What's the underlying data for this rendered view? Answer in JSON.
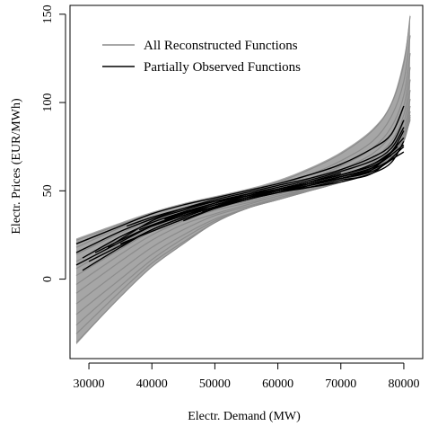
{
  "chart_data": {
    "type": "line",
    "xlabel": "Electr. Demand (MW)",
    "ylabel": "Electr. Prices (EUR/MWh)",
    "xlim": [
      27000,
      83000
    ],
    "ylim": [
      -45,
      155
    ],
    "x_ticks": [
      30000,
      40000,
      50000,
      60000,
      70000,
      80000
    ],
    "y_ticks": [
      0,
      50,
      100,
      150
    ],
    "legend_position": "top-left",
    "series": [
      {
        "name": "All Reconstructed Functions",
        "color": "#8c8c8c",
        "style": "gray-band",
        "lower_envelope": {
          "x": [
            28000,
            35000,
            40000,
            45000,
            50000,
            55000,
            60000,
            65000,
            70000,
            75000,
            78000,
            80000,
            81000
          ],
          "y": [
            -37,
            -10,
            7,
            20,
            32,
            40,
            45,
            50,
            56,
            63,
            70,
            80,
            90
          ]
        },
        "upper_envelope": {
          "x": [
            28000,
            35000,
            40000,
            45000,
            50000,
            55000,
            60000,
            65000,
            70000,
            75000,
            78000,
            80000,
            81000
          ],
          "y": [
            23,
            32,
            38,
            43,
            47,
            51,
            56,
            63,
            72,
            85,
            100,
            125,
            150
          ]
        },
        "curves": [
          {
            "x": [
              28000,
              35000,
              40000,
              45000,
              50000,
              55000,
              60000,
              65000,
              70000,
              75000,
              78000,
              80000,
              81000
            ],
            "y": [
              22,
              31,
              37,
              42,
              46,
              50,
              55,
              62,
              71,
              84,
              99,
              122,
              149
            ]
          },
          {
            "x": [
              28000,
              35000,
              40000,
              45000,
              50000,
              55000,
              60000,
              65000,
              70000,
              75000,
              78000,
              80000,
              81000
            ],
            "y": [
              18,
              29,
              35,
              40,
              44,
              48,
              53,
              59,
              67,
              78,
              92,
              112,
              138
            ]
          },
          {
            "x": [
              28000,
              35000,
              40000,
              45000,
              50000,
              55000,
              60000,
              65000,
              70000,
              75000,
              78000,
              80000,
              81000
            ],
            "y": [
              14,
              26,
              33,
              39,
              43,
              47,
              51,
              57,
              64,
              74,
              86,
              104,
              128
            ]
          },
          {
            "x": [
              28000,
              35000,
              40000,
              45000,
              50000,
              55000,
              60000,
              65000,
              70000,
              75000,
              78000,
              80000,
              81000
            ],
            "y": [
              10,
              23,
              31,
              37,
              42,
              46,
              50,
              55,
              62,
              71,
              82,
              98,
              120
            ]
          },
          {
            "x": [
              28000,
              35000,
              40000,
              45000,
              50000,
              55000,
              60000,
              65000,
              70000,
              75000,
              78000,
              80000,
              81000
            ],
            "y": [
              6,
              20,
              29,
              35,
              41,
              45,
              49,
              54,
              60,
              68,
              78,
              93,
              113
            ]
          },
          {
            "x": [
              28000,
              35000,
              40000,
              45000,
              50000,
              55000,
              60000,
              65000,
              70000,
              75000,
              78000,
              80000,
              81000
            ],
            "y": [
              2,
              17,
              27,
              34,
              40,
              44,
              48,
              53,
              58,
              66,
              75,
              89,
              107
            ]
          },
          {
            "x": [
              28000,
              35000,
              40000,
              45000,
              50000,
              55000,
              60000,
              65000,
              70000,
              75000,
              78000,
              80000,
              81000
            ],
            "y": [
              -3,
              14,
              25,
              33,
              39,
              43,
              47,
              52,
              57,
              64,
              72,
              85,
              102
            ]
          },
          {
            "x": [
              28000,
              35000,
              40000,
              45000,
              50000,
              55000,
              60000,
              65000,
              70000,
              75000,
              78000,
              80000,
              81000
            ],
            "y": [
              -8,
              10,
              22,
              31,
              37,
              42,
              47,
              51,
              56,
              62,
              70,
              82,
              98
            ]
          },
          {
            "x": [
              28000,
              35000,
              40000,
              45000,
              50000,
              55000,
              60000,
              65000,
              70000,
              75000,
              78000,
              80000,
              81000
            ],
            "y": [
              -14,
              5,
              18,
              28,
              36,
              41,
              46,
              51,
              56,
              61,
              69,
              80,
              95
            ]
          },
          {
            "x": [
              28000,
              35000,
              40000,
              45000,
              50000,
              55000,
              60000,
              65000,
              70000,
              75000,
              78000,
              80000,
              81000
            ],
            "y": [
              -20,
              0,
              14,
              25,
              34,
              40,
              46,
              50,
              55,
              61,
              68,
              79,
              93
            ]
          },
          {
            "x": [
              28000,
              35000,
              40000,
              45000,
              50000,
              55000,
              60000,
              65000,
              70000,
              75000,
              78000,
              80000,
              81000
            ],
            "y": [
              -26,
              -4,
              11,
              23,
              33,
              40,
              45,
              50,
              55,
              61,
              68,
              78,
              92
            ]
          },
          {
            "x": [
              28000,
              35000,
              40000,
              45000,
              50000,
              55000,
              60000,
              65000,
              70000,
              75000,
              78000,
              80000,
              81000
            ],
            "y": [
              -31,
              -7,
              9,
              21,
              32,
              40,
              45,
              50,
              55,
              62,
              69,
              79,
              91
            ]
          },
          {
            "x": [
              28000,
              35000,
              40000,
              45000,
              50000,
              55000,
              60000,
              65000,
              70000,
              75000,
              78000,
              80000,
              81000
            ],
            "y": [
              -36,
              -10,
              7,
              20,
              32,
              40,
              45,
              50,
              56,
              63,
              70,
              80,
              90
            ]
          }
        ]
      },
      {
        "name": "Partially Observed Functions",
        "color": "#000000",
        "style": "black-lines",
        "curves": [
          {
            "x": [
              28000,
              35000,
              40000,
              45000,
              50000,
              55000,
              60000,
              65000,
              70000,
              75000,
              78000,
              80000
            ],
            "y": [
              20,
              30,
              37,
              42,
              46,
              50,
              54,
              59,
              65,
              74,
              82,
              98
            ]
          },
          {
            "x": [
              28000,
              35000,
              40000,
              45000,
              50000,
              55000,
              60000,
              65000,
              70000,
              75000,
              78000,
              80000
            ],
            "y": [
              15,
              27,
              34,
              40,
              45,
              49,
              53,
              57,
              62,
              69,
              76,
              90
            ]
          },
          {
            "x": [
              29000,
              35000,
              40000,
              45000,
              50000,
              55000,
              60000,
              65000,
              70000,
              75000,
              78000,
              80000
            ],
            "y": [
              12,
              24,
              32,
              38,
              43,
              48,
              52,
              56,
              61,
              67,
              74,
              86
            ]
          },
          {
            "x": [
              28000,
              35000,
              40000,
              45000,
              50000,
              55000,
              60000,
              65000,
              70000,
              75000,
              78000
            ],
            "y": [
              8,
              21,
              30,
              37,
              42,
              47,
              51,
              55,
              59,
              65,
              72
            ]
          },
          {
            "x": [
              30000,
              35000,
              40000,
              45000,
              50000,
              55000,
              60000,
              65000,
              70000,
              75000,
              79000
            ],
            "y": [
              10,
              19,
              28,
              35,
              41,
              46,
              50,
              54,
              58,
              63,
              75
            ]
          },
          {
            "x": [
              31000,
              35000,
              40000,
              45000,
              50000,
              55000,
              60000,
              65000,
              70000,
              75000,
              80000
            ],
            "y": [
              15,
              22,
              30,
              36,
              42,
              46,
              50,
              53,
              57,
              62,
              80
            ]
          },
          {
            "x": [
              33000,
              40000,
              45000,
              50000,
              55000,
              60000,
              65000,
              70000,
              75000,
              78000,
              80000
            ],
            "y": [
              18,
              33,
              39,
              44,
              48,
              51,
              55,
              59,
              65,
              72,
              84
            ]
          },
          {
            "x": [
              35000,
              40000,
              45000,
              50000,
              55000,
              60000,
              65000,
              70000,
              75000,
              77000
            ],
            "y": [
              20,
              27,
              34,
              40,
              45,
              50,
              54,
              58,
              63,
              68
            ]
          },
          {
            "x": [
              29000,
              35000,
              40000,
              45000,
              50000,
              55000,
              60000,
              65000,
              70000
            ],
            "y": [
              5,
              18,
              28,
              35,
              41,
              46,
              50,
              55,
              60
            ]
          },
          {
            "x": [
              36000,
              40000,
              45000,
              50000,
              55000,
              60000,
              65000,
              70000,
              75000,
              78000,
              80000
            ],
            "y": [
              30,
              35,
              40,
              44,
              47,
              50,
              52,
              55,
              60,
              66,
              78
            ]
          },
          {
            "x": [
              38000,
              45000,
              50000,
              55000,
              60000,
              65000,
              70000,
              75000,
              79000
            ],
            "y": [
              28,
              37,
              42,
              46,
              50,
              54,
              57,
              61,
              70
            ]
          },
          {
            "x": [
              40000,
              45000,
              50000,
              55000,
              60000,
              65000,
              70000,
              75000,
              80000
            ],
            "y": [
              30,
              36,
              41,
              45,
              49,
              52,
              56,
              60,
              75
            ]
          },
          {
            "x": [
              42000,
              50000,
              55000,
              60000,
              65000,
              70000,
              75000,
              78000
            ],
            "y": [
              34,
              43,
              47,
              51,
              55,
              59,
              64,
              70
            ]
          },
          {
            "x": [
              45000,
              50000,
              55000,
              60000,
              65000,
              70000,
              75000,
              80000
            ],
            "y": [
              33,
              40,
              45,
              49,
              53,
              57,
              62,
              72
            ]
          },
          {
            "x": [
              48000,
              55000,
              60000,
              65000,
              70000,
              75000,
              80000
            ],
            "y": [
              38,
              46,
              50,
              54,
              58,
              63,
              76
            ]
          }
        ]
      }
    ]
  }
}
